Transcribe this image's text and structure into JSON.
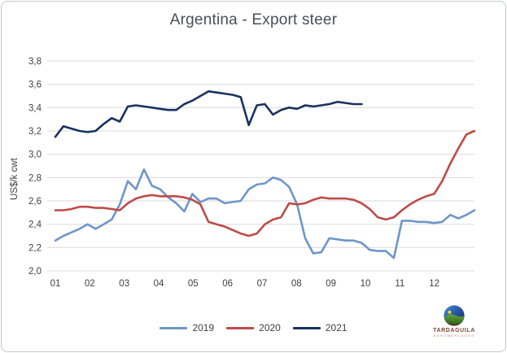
{
  "chart_data": {
    "type": "line",
    "title": "Argentina - Export steer",
    "xlabel": "",
    "ylabel": "US$/k cwt",
    "ylim": [
      2.0,
      3.8
    ],
    "yticks": [
      2.0,
      2.2,
      2.4,
      2.6,
      2.8,
      3.0,
      3.2,
      3.4,
      3.6,
      3.8
    ],
    "ytick_labels": [
      "2,0",
      "2,2",
      "2,4",
      "2,6",
      "2,8",
      "3,0",
      "3,2",
      "3,4",
      "3,6",
      "3,8"
    ],
    "x_labels": [
      "01",
      "02",
      "03",
      "04",
      "05",
      "06",
      "07",
      "08",
      "09",
      "10",
      "11",
      "12"
    ],
    "x_frequency": "weekly",
    "grid": "horizontal",
    "legend_position": "bottom-center",
    "gridline_color": "#d9d9d9",
    "text_color": "#404040",
    "series": [
      {
        "name": "2019",
        "color": "#6e96c8",
        "values": [
          2.26,
          2.3,
          2.33,
          2.36,
          2.4,
          2.36,
          2.4,
          2.44,
          2.57,
          2.77,
          2.7,
          2.87,
          2.73,
          2.7,
          2.63,
          2.58,
          2.51,
          2.66,
          2.59,
          2.62,
          2.62,
          2.58,
          2.59,
          2.6,
          2.7,
          2.74,
          2.75,
          2.8,
          2.78,
          2.72,
          2.57,
          2.28,
          2.15,
          2.16,
          2.28,
          2.27,
          2.26,
          2.26,
          2.24,
          2.18,
          2.17,
          2.17,
          2.11,
          2.43,
          2.43,
          2.42,
          2.42,
          2.41,
          2.42,
          2.48,
          2.45,
          2.48,
          2.52
        ]
      },
      {
        "name": "2020",
        "color": "#be4b48",
        "values": [
          2.52,
          2.52,
          2.53,
          2.55,
          2.55,
          2.54,
          2.54,
          2.53,
          2.52,
          2.58,
          2.62,
          2.64,
          2.65,
          2.64,
          2.64,
          2.64,
          2.63,
          2.61,
          2.57,
          2.42,
          2.4,
          2.38,
          2.35,
          2.32,
          2.3,
          2.32,
          2.4,
          2.44,
          2.46,
          2.58,
          2.57,
          2.58,
          2.61,
          2.63,
          2.62,
          2.62,
          2.62,
          2.61,
          2.58,
          2.53,
          2.46,
          2.44,
          2.46,
          2.52,
          2.57,
          2.61,
          2.64,
          2.66,
          2.77,
          2.92,
          3.05,
          3.17,
          3.2
        ]
      },
      {
        "name": "2021",
        "color": "#1a3260",
        "values": [
          3.15,
          3.24,
          3.22,
          3.2,
          3.19,
          3.2,
          3.26,
          3.31,
          3.28,
          3.41,
          3.42,
          3.41,
          3.4,
          3.39,
          3.38,
          3.38,
          3.43,
          3.46,
          3.5,
          3.54,
          3.53,
          3.52,
          3.51,
          3.49,
          3.25,
          3.42,
          3.43,
          3.34,
          3.38,
          3.4,
          3.39,
          3.42,
          3.41,
          3.42,
          3.43,
          3.45,
          3.44,
          3.43,
          3.43
        ]
      }
    ]
  },
  "logo": {
    "name": "TARDAGUILA",
    "subtext": "AGROMERCADOS",
    "name_color": "#7b4a2e"
  }
}
